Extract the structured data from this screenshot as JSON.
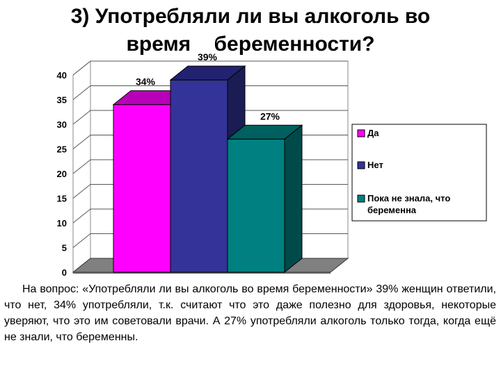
{
  "title": {
    "line1": "3) Употребляли ли вы алкоголь во",
    "line2": "время    беременности?"
  },
  "chart_data": {
    "type": "bar",
    "categories": [
      "Да",
      "Нет",
      "Пока не знала, что беременна"
    ],
    "values": [
      34,
      39,
      27
    ],
    "data_labels": [
      "34%",
      "39%",
      "27%"
    ],
    "colors": [
      "#ff00ff",
      "#333399",
      "#008080"
    ],
    "top_colors": [
      "#b800b8",
      "#222270",
      "#006060"
    ],
    "side_colors": [
      "#990099",
      "#1c1c55",
      "#004a4a"
    ],
    "legend": [
      {
        "label": "Да",
        "color": "#ff00ff"
      },
      {
        "label": "Нет",
        "color": "#333399"
      },
      {
        "label": "Пока не знала, что беременна",
        "color": "#008080"
      }
    ],
    "legend_position": "right",
    "ylim": [
      0,
      40
    ],
    "yticks": [
      0,
      5,
      10,
      15,
      20,
      25,
      30,
      35,
      40
    ],
    "grid": true,
    "style": "3d-column",
    "xlabel": "",
    "ylabel": ""
  },
  "caption": "На вопрос: «Употребляли ли вы алкоголь во время беременности» 39% женщин ответили, что нет, 34% употребляли, т.к. считают что это даже полезно для здоровья, некоторые уверяют, что это им советовали врачи. А 27% употребляли алкоголь только тогда, когда ещё не знали, что беременны."
}
